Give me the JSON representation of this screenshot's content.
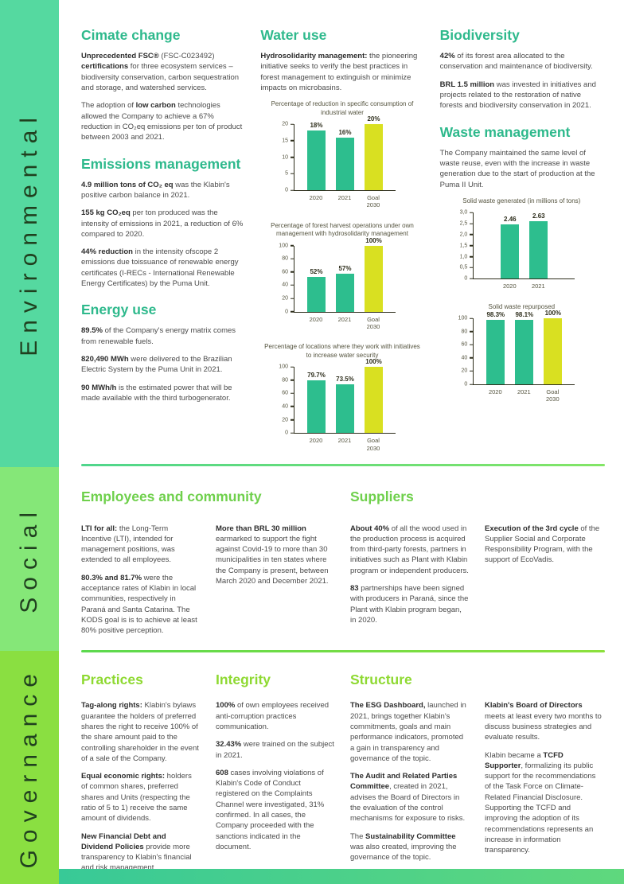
{
  "colors": {
    "env_sidebar": "#55d9a0",
    "social_sidebar": "#85e778",
    "gov_sidebar": "#8adf41",
    "sidebar_text": "#20401f",
    "env_heading": "#2eb98c",
    "social_heading": "#6fd04c",
    "gov_heading": "#8ed931",
    "bar_actual": "#2dbe8e",
    "bar_goal": "#d9e021",
    "divider1_left": "#4fd68c",
    "divider1_right": "#83e566",
    "divider2_left": "#5cd94e",
    "divider2_right": "#8ce03c",
    "strip_left": "#38c997",
    "strip_right": "#5fd87d"
  },
  "sidebar": {
    "environmental": "Environmental",
    "social": "Social",
    "governance": "Governance"
  },
  "environmental": {
    "col1": [
      [
        "h",
        "Cimate change"
      ],
      [
        "p",
        "**Unprecedented FSC®** (FSC-C023492) **certifications** for three ecosystem services – biodiversity conservation, carbon sequestration and storage, and watershed services."
      ],
      [
        "p",
        "The adoption of **low carbon** technologies allowed the Company to achieve a 67% reduction in CO₂eq emissions per ton of product between 2003 and 2021."
      ],
      [
        "h",
        "Emissions management"
      ],
      [
        "p",
        "**4.9 million tons of CO₂ eq** was the Klabin's positive carbon balance in 2021."
      ],
      [
        "p",
        "**155 kg CO₂eq** per ton produced was the intensity of emissions in 2021, a reduction of 6% compared to 2020."
      ],
      [
        "p",
        "**44% reduction** in the intensity ofscope 2 emissions due toissuance of renewable energy certificates (I-RECs - International Renewable Energy Certificates) by the Puma Unit."
      ],
      [
        "h",
        "Energy use"
      ],
      [
        "p",
        "**89.5%** of the Company's energy matrix comes from renewable fuels."
      ],
      [
        "p",
        "**820,490 MWh** were delivered to the Brazilian Electric System by the Puma Unit in 2021."
      ],
      [
        "p",
        "**90 MWh/h** is the estimated power that will be made available with the third turbogenerator."
      ]
    ],
    "col2": [
      [
        "h",
        "Water use"
      ],
      [
        "p",
        "**Hydrosolidarity management:** the pioneering initiative seeks to verify the best practices in forest management to extinguish or minimize impacts on microbasins."
      ]
    ],
    "col3": [
      [
        "h",
        "Biodiversity"
      ],
      [
        "p",
        "**42%** of its forest area allocated to the conservation and maintenance of biodiversity."
      ],
      [
        "p",
        "**BRL 1.5 million** was invested in initiatives and projects related to the restoration of native forests and biodiversity conservation in 2021."
      ],
      [
        "h",
        "Waste management"
      ],
      [
        "p",
        "The Company maintained the same level of waste reuse, even with the increase in waste generation due to the start of production at the Puma II Unit."
      ]
    ]
  },
  "social": {
    "heading1": "Employees and community",
    "heading2": "Suppliers",
    "col1": [
      [
        "p",
        "**LTI for all:** the Long-Term Incentive (LTI), intended for management positions, was extended to all employees."
      ],
      [
        "p",
        "**80.3% and 81.7%** were the acceptance rates of Klabin in local communities, respectively in Paraná and Santa Catarina. The KODS goal is is to achieve at least 80% positive perception."
      ]
    ],
    "col2": [
      [
        "p",
        "**More than BRL 30 million** earmarked to support the fight against Covid-19 to more than 30 municipalities in ten states where the Company is present, between March 2020 and December 2021."
      ]
    ],
    "col3": [
      [
        "p",
        "**About 40%** of all the wood used in the production process is acquired from third-party forests, partners in initiatives such as Plant with Klabin program or independent producers."
      ],
      [
        "p",
        "**83** partnerships have been signed with producers in Paraná, since the Plant with Klabin program began, in 2020."
      ]
    ],
    "col4": [
      [
        "p",
        "**Execution of the 3rd cycle** of the Supplier Social and Corporate Responsibility Program, with the support of EcoVadis."
      ]
    ]
  },
  "governance": {
    "headings": [
      "Practices",
      "Integrity",
      "Structure"
    ],
    "col1": [
      [
        "p",
        "**Tag-along rights:** Klabin's bylaws guarantee the holders of preferred shares the right to receive 100% of the share amount paid to the controlling shareholder in the event of a sale of the Company."
      ],
      [
        "p",
        "**Equal economic rights:** holders of common shares, preferred shares and Units (respecting the ratio of 5 to 1) receive the same amount of dividends."
      ],
      [
        "p",
        "**New Financial Debt and Dividend Policies** provide more transparency to Klabin's financial and risk management."
      ]
    ],
    "col2": [
      [
        "p",
        "**100%** of own employees received anti-corruption practices communication."
      ],
      [
        "p",
        "**32.43%** were trained on the subject in 2021."
      ],
      [
        "p",
        "**608** cases involving violations of Klabin's Code of Conduct registered on the Complaints Channel were investigated, 31% confirmed. In all cases, the Company proceeded with the sanctions indicated in the document."
      ]
    ],
    "col3": [
      [
        "p",
        "**The ESG Dashboard,** launched in 2021, brings together Klabin's commitments, goals and main performance indicators, promoted a gain in transparency and governance of the topic."
      ],
      [
        "p",
        "**The Audit and Related Parties Committee**, created in 2021, advises the Board of Directors in the evaluation of the control mechanisms for exposure to risks."
      ],
      [
        "p",
        "The **Sustainability Committee** was also created, improving the governance of the topic."
      ]
    ],
    "col4": [
      [
        "p",
        "**Klabin's Board of Directors** meets at least every two months to discuss business strategies and evaluate results."
      ],
      [
        "p",
        "Klabin became a **TCFD Supporter**, formalizing its public support for the recommendations of the Task Force on Climate-Related Financial Disclosure. Supporting the TCFD and improving the adoption of its recommendations represents an increase in information transparency."
      ]
    ]
  },
  "chart_data": [
    {
      "type": "bar",
      "title": "Percentage of reduction in specific consumption of industrial water",
      "ylim": [
        0,
        20
      ],
      "yticks": [
        {
          "v": 0,
          "label": "0"
        },
        {
          "v": 5,
          "label": "5"
        },
        {
          "v": 10,
          "label": "10"
        },
        {
          "v": 15,
          "label": "15"
        },
        {
          "v": 20,
          "label": "20"
        }
      ],
      "bars": [
        {
          "label": "2020",
          "value": 18,
          "display": "18%",
          "goal": false
        },
        {
          "label": "2021",
          "value": 16,
          "display": "16%",
          "goal": false
        },
        {
          "label": "Goal\n2030",
          "value": 20,
          "display": "20%",
          "goal": true
        }
      ]
    },
    {
      "type": "bar",
      "title": "Percentage of forest harvest operations under own management with hydrosolidarity management",
      "ylim": [
        0,
        100
      ],
      "yticks": [
        {
          "v": 0,
          "label": "0"
        },
        {
          "v": 20,
          "label": "20"
        },
        {
          "v": 40,
          "label": "40"
        },
        {
          "v": 60,
          "label": "60"
        },
        {
          "v": 80,
          "label": "80"
        },
        {
          "v": 100,
          "label": "100"
        }
      ],
      "bars": [
        {
          "label": "2020",
          "value": 52,
          "display": "52%",
          "goal": false
        },
        {
          "label": "2021",
          "value": 57,
          "display": "57%",
          "goal": false
        },
        {
          "label": "Goal\n2030",
          "value": 100,
          "display": "100%",
          "goal": true
        }
      ]
    },
    {
      "type": "bar",
      "title": "Percentage of locations where they work with initiatives to increase water security",
      "ylim": [
        0,
        100
      ],
      "yticks": [
        {
          "v": 0,
          "label": "0"
        },
        {
          "v": 20,
          "label": "20"
        },
        {
          "v": 40,
          "label": "40"
        },
        {
          "v": 60,
          "label": "60"
        },
        {
          "v": 80,
          "label": "80"
        },
        {
          "v": 100,
          "label": "100"
        }
      ],
      "bars": [
        {
          "label": "2020",
          "value": 79.7,
          "display": "79.7%",
          "goal": false
        },
        {
          "label": "2021",
          "value": 73.5,
          "display": "73.5%",
          "goal": false
        },
        {
          "label": "Goal\n2030",
          "value": 100,
          "display": "100%",
          "goal": true
        }
      ]
    },
    {
      "type": "bar",
      "title": "Solid waste generated (in millions of tons)",
      "ylim": [
        0,
        3
      ],
      "yticks": [
        {
          "v": 0,
          "label": "0"
        },
        {
          "v": 0.5,
          "label": "0,5"
        },
        {
          "v": 1,
          "label": "1,0"
        },
        {
          "v": 1.5,
          "label": "1,5"
        },
        {
          "v": 2,
          "label": "2,0"
        },
        {
          "v": 2.5,
          "label": "2,5"
        },
        {
          "v": 3,
          "label": "3,0"
        }
      ],
      "bars": [
        {
          "label": "2020",
          "value": 2.46,
          "display": "2.46",
          "goal": false
        },
        {
          "label": "2021",
          "value": 2.63,
          "display": "2.63",
          "goal": false
        }
      ]
    },
    {
      "type": "bar",
      "title": "Solid waste repurposed",
      "ylim": [
        0,
        100
      ],
      "yticks": [
        {
          "v": 0,
          "label": "0"
        },
        {
          "v": 20,
          "label": "20"
        },
        {
          "v": 40,
          "label": "40"
        },
        {
          "v": 60,
          "label": "60"
        },
        {
          "v": 80,
          "label": "80"
        },
        {
          "v": 100,
          "label": "100"
        }
      ],
      "bars": [
        {
          "label": "2020",
          "value": 98.3,
          "display": "98.3%",
          "goal": false
        },
        {
          "label": "2021",
          "value": 98.1,
          "display": "98.1%",
          "goal": false
        },
        {
          "label": "Goal\n2030",
          "value": 100,
          "display": "100%",
          "goal": true
        }
      ]
    }
  ]
}
